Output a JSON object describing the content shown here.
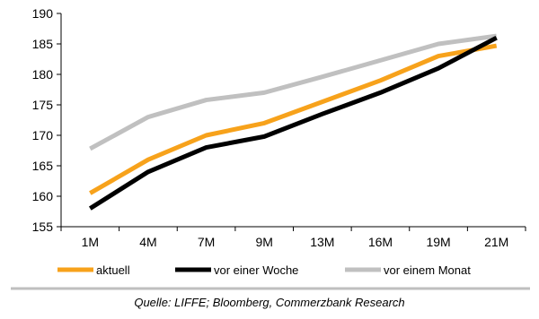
{
  "chart_data": {
    "type": "line",
    "categories": [
      "1M",
      "4M",
      "7M",
      "9M",
      "13M",
      "16M",
      "19M",
      "21M"
    ],
    "ylim": [
      155,
      190
    ],
    "yticks": [
      155,
      160,
      165,
      170,
      175,
      180,
      185,
      190
    ],
    "grid": false,
    "legend_position": "bottom",
    "series": [
      {
        "name": "aktuell",
        "color": "#f7a21b",
        "values": [
          160.5,
          166,
          170,
          172,
          175.5,
          179,
          183,
          184.7
        ]
      },
      {
        "name": "vor einer Woche",
        "color": "#000000",
        "values": [
          158,
          164,
          168,
          169.8,
          173.5,
          177,
          181,
          186
        ]
      },
      {
        "name": "vor einem Monat",
        "color": "#c0c0c0",
        "values": [
          167.8,
          173,
          175.8,
          177,
          179.6,
          182.3,
          185,
          186.3
        ]
      }
    ]
  },
  "source": "Quelle: LIFFE; Bloomberg, Commerzbank Research"
}
